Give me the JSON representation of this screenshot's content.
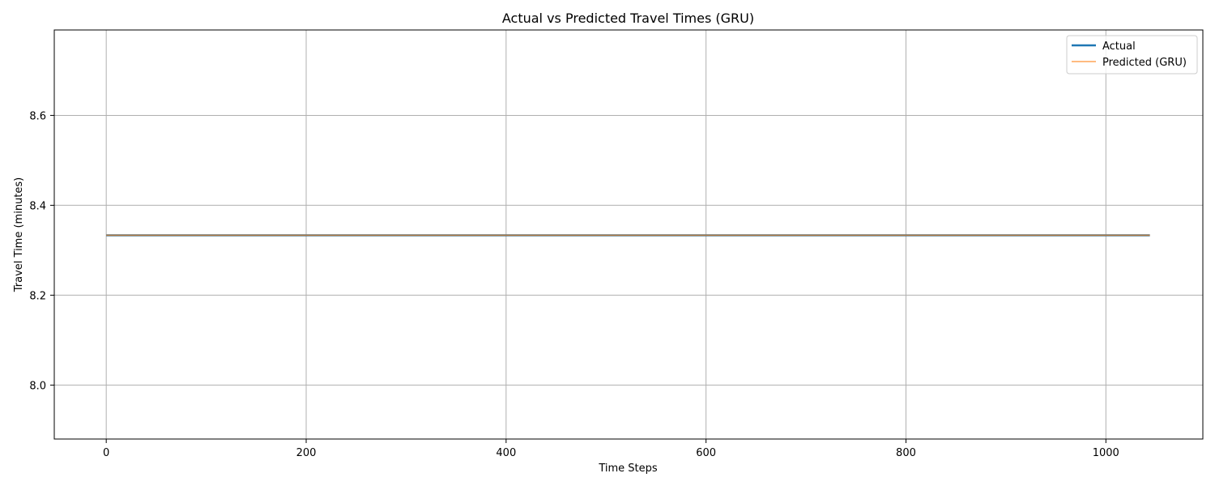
{
  "chart_data": {
    "type": "line",
    "title": "Actual vs Predicted Travel Times (GRU)",
    "xlabel": "Time Steps",
    "ylabel": "Travel Time (minutes)",
    "xlim": [
      -52,
      1097
    ],
    "ylim": [
      7.88,
      8.79
    ],
    "xticks": [
      0,
      200,
      400,
      600,
      800,
      1000
    ],
    "xtick_labels": [
      "0",
      "200",
      "400",
      "600",
      "800",
      "1000"
    ],
    "yticks": [
      8.0,
      8.2,
      8.4,
      8.6
    ],
    "ytick_labels": [
      "8.0",
      "8.2",
      "8.4",
      "8.6"
    ],
    "grid": true,
    "legend_position": "top-right",
    "series": [
      {
        "name": "Actual",
        "color": "#1f77b4",
        "x": [
          0,
          1044
        ],
        "values": [
          8.3333,
          8.3333
        ]
      },
      {
        "name": "Predicted (GRU)",
        "color": "#ff7f0e",
        "x": [
          0,
          1044
        ],
        "values": [
          8.3333,
          8.3333
        ]
      }
    ]
  }
}
